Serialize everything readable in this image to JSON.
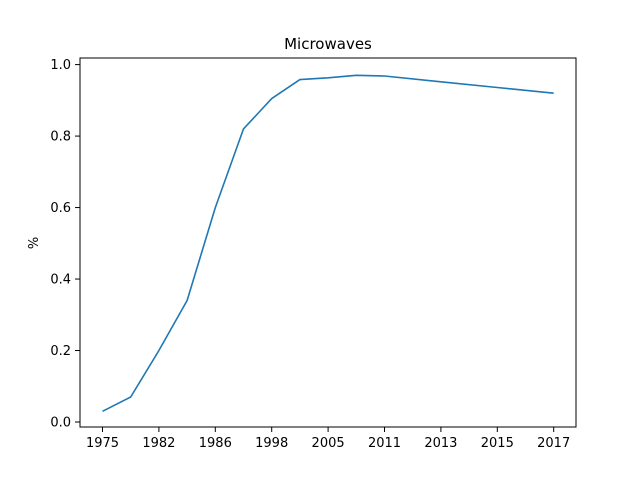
{
  "chart_data": {
    "type": "line",
    "title": "Microwaves",
    "xlabel": "",
    "ylabel": "%",
    "x_tick_labels": [
      "1975",
      "1982",
      "1986",
      "1998",
      "2005",
      "2011",
      "2013",
      "2015",
      "2017"
    ],
    "y_tick_labels": [
      "0.0",
      "0.2",
      "0.4",
      "0.6",
      "0.8",
      "1.0"
    ],
    "ylim": [
      0.0,
      1.0
    ],
    "grid": false,
    "series": [
      {
        "color": "#1f77b4",
        "x": [
          1975,
          1978,
          1982,
          1984,
          1986,
          1988,
          1998,
          2002,
          2005,
          2008,
          2011,
          2013,
          2015,
          2017
        ],
        "x_positions": [
          0,
          1,
          2,
          3,
          4,
          5,
          6,
          7,
          8,
          9,
          10,
          12,
          14,
          16
        ],
        "values": [
          0.03,
          0.07,
          0.2,
          0.34,
          0.6,
          0.82,
          0.905,
          0.958,
          0.963,
          0.97,
          0.968,
          0.952,
          0.936,
          0.92
        ]
      }
    ]
  }
}
